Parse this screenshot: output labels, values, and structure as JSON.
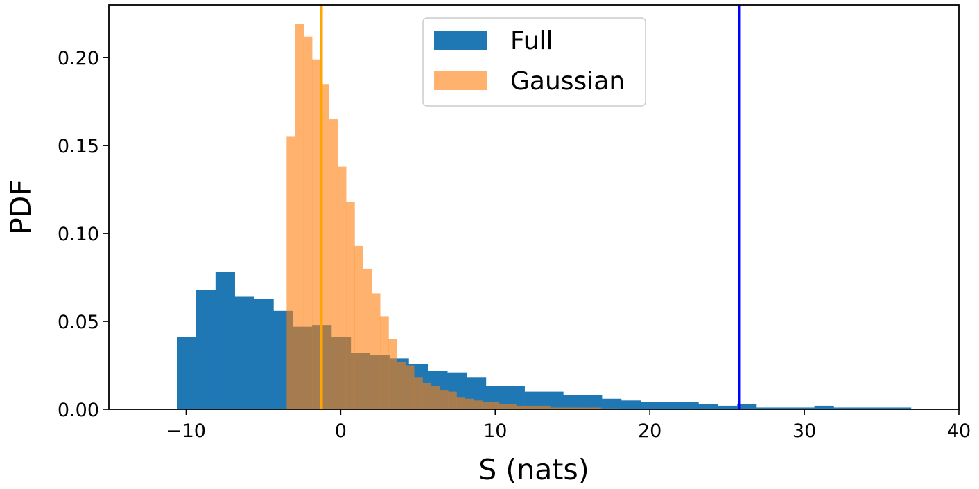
{
  "chart_data": {
    "type": "histogram",
    "xlabel": "S (nats)",
    "ylabel": "PDF",
    "xlim": [
      -15,
      40
    ],
    "ylim": [
      0,
      0.23
    ],
    "xticks": [
      -10,
      0,
      10,
      20,
      30,
      40
    ],
    "xtick_labels": [
      "−10",
      "0",
      "10",
      "20",
      "30",
      "40"
    ],
    "yticks": [
      0.0,
      0.05,
      0.1,
      0.15,
      0.2
    ],
    "ytick_labels": [
      "0.00",
      "0.05",
      "0.10",
      "0.15",
      "0.20"
    ],
    "legend_position": "upper center",
    "grid": false,
    "series": [
      {
        "name": "Full",
        "color": "#1f77b4",
        "opacity": 1.0,
        "bin_edges": [
          -10.6,
          -9.35,
          -8.1,
          -6.85,
          -5.6,
          -4.35,
          -3.1,
          -1.85,
          -0.6,
          0.65,
          1.9,
          3.15,
          4.4,
          5.65,
          6.9,
          8.15,
          9.4,
          10.65,
          11.9,
          13.15,
          14.4,
          15.65,
          16.9,
          18.15,
          19.4,
          20.65,
          21.9,
          23.15,
          24.4,
          25.65,
          26.9,
          28.15,
          29.4,
          30.65,
          31.9,
          33.15,
          34.4,
          35.65,
          36.9,
          37.5
        ],
        "values": [
          0.041,
          0.068,
          0.078,
          0.064,
          0.063,
          0.056,
          0.047,
          0.048,
          0.041,
          0.032,
          0.031,
          0.029,
          0.026,
          0.022,
          0.021,
          0.018,
          0.013,
          0.013,
          0.01,
          0.01,
          0.008,
          0.008,
          0.006,
          0.005,
          0.004,
          0.004,
          0.004,
          0.003,
          0.002,
          0.003,
          0.001,
          0.001,
          0.001,
          0.002,
          0.001,
          0.001,
          0.001,
          0.001,
          0.0
        ]
      },
      {
        "name": "Gaussian",
        "color": "#ff7f0e",
        "opacity": 0.6,
        "bin_edges": [
          -3.5,
          -2.95,
          -2.4,
          -1.85,
          -1.3,
          -0.75,
          -0.2,
          0.35,
          0.9,
          1.45,
          2.0,
          2.55,
          3.1,
          3.65,
          4.2,
          4.75,
          5.3,
          5.85,
          6.4,
          6.95,
          7.5,
          8.05,
          8.6,
          9.15,
          9.7,
          10.25,
          10.8,
          11.35,
          11.9,
          12.45,
          13.0,
          13.55,
          14.1,
          14.65,
          15.2,
          15.75,
          16.3,
          16.85,
          17.4,
          17.95
        ],
        "values": [
          0.155,
          0.219,
          0.212,
          0.199,
          0.185,
          0.165,
          0.138,
          0.118,
          0.093,
          0.08,
          0.066,
          0.053,
          0.04,
          0.027,
          0.025,
          0.018,
          0.015,
          0.013,
          0.011,
          0.01,
          0.007,
          0.006,
          0.005,
          0.004,
          0.004,
          0.003,
          0.003,
          0.002,
          0.002,
          0.002,
          0.002,
          0.001,
          0.001,
          0.001,
          0.001,
          0.001,
          0.001,
          0.0005,
          0.0005
        ]
      }
    ],
    "vlines": [
      {
        "x": -1.25,
        "color": "#ffa500"
      },
      {
        "x": 25.8,
        "color": "#0000ff"
      }
    ]
  }
}
